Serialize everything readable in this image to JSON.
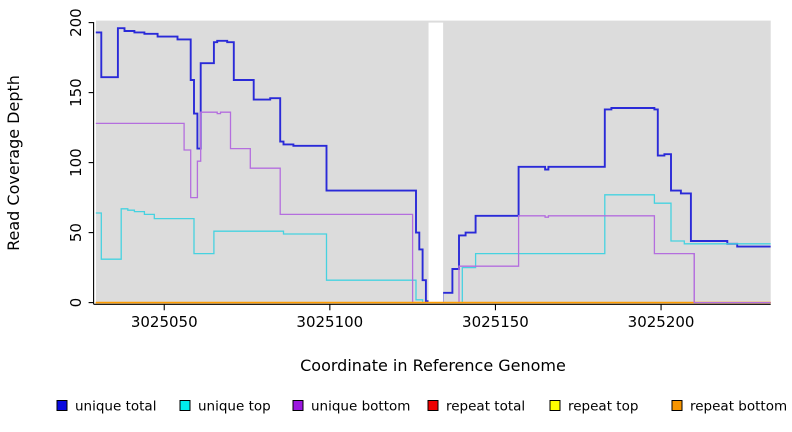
{
  "axes": {
    "x_label": "Coordinate in Reference Genome",
    "y_label": "Read Coverage Depth",
    "x_ticks": [
      3025050,
      3025100,
      3025150,
      3025200
    ],
    "y_ticks": [
      0,
      50,
      100,
      150,
      200
    ]
  },
  "colors": {
    "plot_background": "#dcdcdc",
    "page_background": "#ffffff",
    "axis": "#000000",
    "gap_band": "#ffffff"
  },
  "legend": {
    "items": [
      {
        "label": "unique total",
        "color": "#0a0ae0"
      },
      {
        "label": "unique top",
        "color": "#00eeee"
      },
      {
        "label": "unique bottom",
        "color": "#9c17e0"
      },
      {
        "label": "repeat total",
        "color": "#ee0000"
      },
      {
        "label": "repeat top",
        "color": "#fdff00"
      },
      {
        "label": "repeat bottom",
        "color": "#f79500"
      }
    ]
  },
  "chart_data": {
    "type": "line",
    "step": true,
    "title": "",
    "xlabel": "Coordinate in Reference Genome",
    "ylabel": "Read Coverage Depth",
    "x_range": [
      3025029.4,
      3025233.1
    ],
    "ylim": [
      0,
      200
    ],
    "grid": false,
    "legend_position": "bottom",
    "no_data_gap": [
      3025129.8,
      3025134.2
    ],
    "series": [
      {
        "name": "unique total",
        "color": "#2a2ad8",
        "width": 1.9,
        "points": [
          [
            3025029,
            193
          ],
          [
            3025031,
            161
          ],
          [
            3025036,
            196
          ],
          [
            3025038,
            194
          ],
          [
            3025041,
            193
          ],
          [
            3025044,
            192
          ],
          [
            3025048,
            190
          ],
          [
            3025054,
            188
          ],
          [
            3025058,
            159
          ],
          [
            3025059,
            135
          ],
          [
            3025060,
            110
          ],
          [
            3025061,
            171
          ],
          [
            3025065,
            186
          ],
          [
            3025066,
            187
          ],
          [
            3025069,
            186
          ],
          [
            3025071,
            159
          ],
          [
            3025077,
            145
          ],
          [
            3025082,
            146
          ],
          [
            3025085,
            115
          ],
          [
            3025086,
            113
          ],
          [
            3025089,
            112
          ],
          [
            3025099,
            80
          ],
          [
            3025126,
            50
          ],
          [
            3025127,
            38
          ],
          [
            3025128,
            16
          ],
          [
            3025129,
            1
          ],
          [
            3025134,
            7
          ],
          [
            3025137,
            24
          ],
          [
            3025139,
            48
          ],
          [
            3025141,
            50
          ],
          [
            3025144,
            62
          ],
          [
            3025157,
            97
          ],
          [
            3025165,
            95
          ],
          [
            3025166,
            97
          ],
          [
            3025183,
            138
          ],
          [
            3025185,
            139
          ],
          [
            3025198,
            138
          ],
          [
            3025199,
            105
          ],
          [
            3025201,
            106
          ],
          [
            3025203,
            80
          ],
          [
            3025206,
            78
          ],
          [
            3025209,
            44
          ],
          [
            3025220,
            42
          ],
          [
            3025223,
            40
          ],
          [
            3025233,
            40
          ]
        ]
      },
      {
        "name": "unique top",
        "color": "#46d2e0",
        "width": 1.3,
        "points": [
          [
            3025029,
            64
          ],
          [
            3025031,
            31
          ],
          [
            3025037,
            67
          ],
          [
            3025039,
            66
          ],
          [
            3025041,
            65
          ],
          [
            3025044,
            63
          ],
          [
            3025047,
            60
          ],
          [
            3025059,
            35
          ],
          [
            3025065,
            51
          ],
          [
            3025086,
            49
          ],
          [
            3025099,
            16
          ],
          [
            3025126,
            2
          ],
          [
            3025128,
            0
          ],
          [
            3025140,
            25
          ],
          [
            3025144,
            35
          ],
          [
            3025183,
            77
          ],
          [
            3025198,
            71
          ],
          [
            3025203,
            44
          ],
          [
            3025207,
            42
          ],
          [
            3025233,
            42
          ]
        ]
      },
      {
        "name": "unique bottom",
        "color": "#b46ede",
        "width": 1.3,
        "points": [
          [
            3025029,
            128
          ],
          [
            3025056,
            109
          ],
          [
            3025058,
            75
          ],
          [
            3025060,
            101
          ],
          [
            3025061,
            136
          ],
          [
            3025066,
            135
          ],
          [
            3025067,
            136
          ],
          [
            3025070,
            110
          ],
          [
            3025076,
            96
          ],
          [
            3025085,
            63
          ],
          [
            3025125,
            0
          ],
          [
            3025139,
            26
          ],
          [
            3025157,
            62
          ],
          [
            3025165,
            61
          ],
          [
            3025166,
            62
          ],
          [
            3025198,
            35
          ],
          [
            3025210,
            0
          ],
          [
            3025233,
            0
          ]
        ]
      },
      {
        "name": "repeat total",
        "color": "#ee1111",
        "width": 1.3,
        "points": [
          [
            3025029,
            0
          ],
          [
            3025233,
            0
          ]
        ]
      },
      {
        "name": "repeat top",
        "color": "#ffff00",
        "width": 1.3,
        "points": [
          [
            3025029,
            0
          ],
          [
            3025233,
            0
          ]
        ]
      },
      {
        "name": "repeat bottom",
        "color": "#ff9c00",
        "width": 1.6,
        "points": [
          [
            3025029,
            0
          ],
          [
            3025233,
            0
          ]
        ]
      }
    ]
  }
}
